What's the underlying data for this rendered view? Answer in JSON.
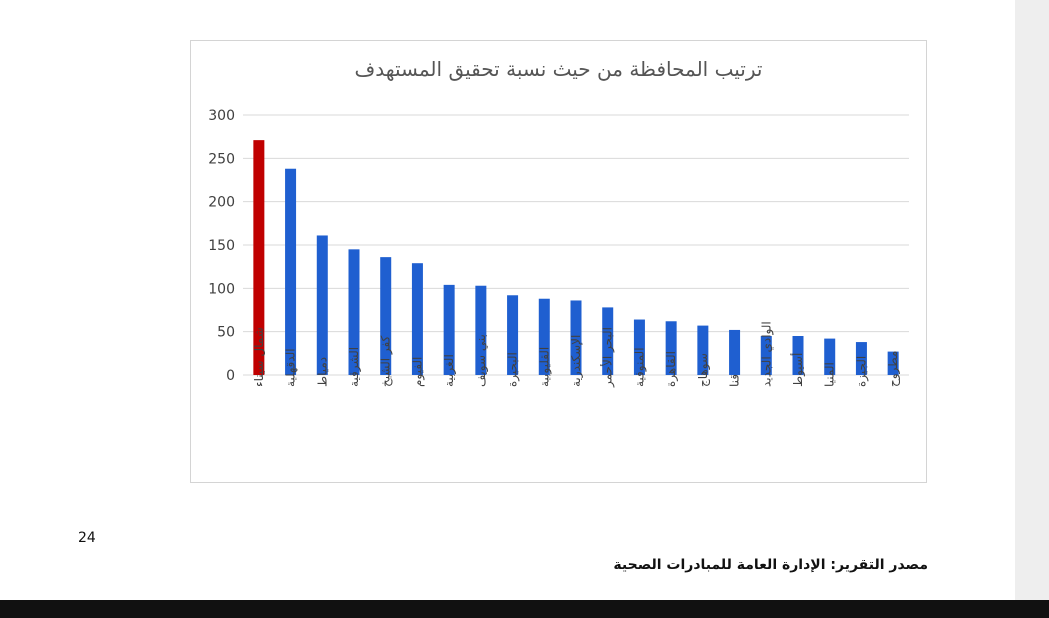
{
  "page": {
    "page_number": "24",
    "source_note": "مصدر التقرير: الإدارة العامة للمبادرات الصحية"
  },
  "colors": {
    "highlight_bar": "#c00000",
    "bar": "#1f5fd0",
    "gridline": "#d9d9d9",
    "tick_text": "#404040"
  },
  "chart_data": {
    "type": "bar",
    "title": "ترتيب المحافظة من حيث نسبة  تحقيق المستهدف",
    "xlabel": "",
    "ylabel": "",
    "ylim": [
      0,
      300
    ],
    "yticks": [
      0,
      50,
      100,
      150,
      200,
      250,
      300
    ],
    "grid": true,
    "legend": "none",
    "categories": [
      "شمال سيناء",
      "الدقهلية",
      "دمياط",
      "الشرقية",
      "كفر الشيخ",
      "الفيوم",
      "الغربية",
      "بني سويف",
      "البحيرة",
      "القليوبية",
      "الإسكندرية",
      "البحر الأحمر",
      "المنوفية",
      "القاهرة",
      "سوهاج",
      "قنا",
      "الوادي الجديد",
      "أسيوط",
      "المنيا",
      "الجيزة",
      "مطروح"
    ],
    "values": [
      271,
      238,
      161,
      145,
      136,
      129,
      104,
      103,
      92,
      88,
      86,
      78,
      64,
      62,
      57,
      52,
      45,
      45,
      42,
      38,
      27
    ],
    "highlight_index": 0
  }
}
